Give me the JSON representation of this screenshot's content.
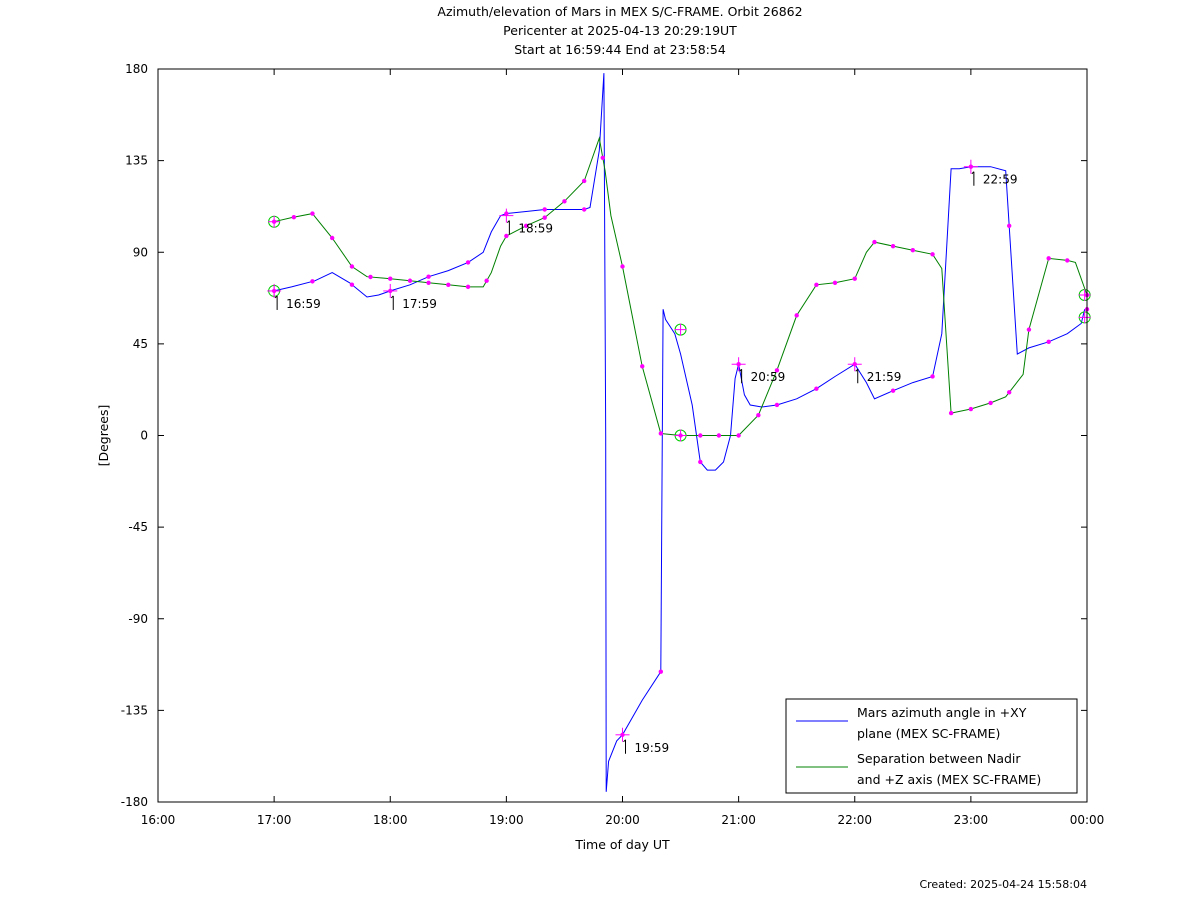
{
  "chart_data": {
    "type": "line",
    "title_lines": [
      "Azimuth/elevation of Mars in MEX S/C-FRAME.  Orbit 26862",
      "Pericenter at 2025-04-13 20:29:19UT",
      "Start at 16:59:44 End at 23:58:54"
    ],
    "xlabel": "Time of day UT",
    "ylabel": "[Degrees]",
    "xlim": [
      16,
      24
    ],
    "ylim": [
      -180,
      180
    ],
    "x_ticks": [
      16,
      17,
      18,
      19,
      20,
      21,
      22,
      23,
      24
    ],
    "x_tick_labels": [
      "16:00",
      "17:00",
      "18:00",
      "19:00",
      "20:00",
      "21:00",
      "22:00",
      "23:00",
      "00:00"
    ],
    "y_ticks": [
      180,
      135,
      90,
      45,
      0,
      -45,
      -90,
      -135,
      -180
    ],
    "y_tick_labels": [
      "180",
      "135",
      "90",
      "45",
      "0",
      "-45",
      "-90",
      "-135",
      "-180"
    ],
    "legend_position": "bottom-right",
    "series": [
      {
        "name": "Mars azimuth angle in +XY plane (MEX SC-FRAME)",
        "legend_lines": [
          "Mars azimuth angle in +XY",
          "plane (MEX SC-FRAME)"
        ],
        "color": "#0000ff",
        "x": [
          17.0,
          17.15,
          17.35,
          17.5,
          17.65,
          17.8,
          17.9,
          18.0,
          18.17,
          18.33,
          18.5,
          18.67,
          18.8,
          18.87,
          18.95,
          19.0,
          19.17,
          19.33,
          19.5,
          19.67,
          19.72,
          19.8,
          19.84,
          19.855,
          19.86,
          19.88,
          19.95,
          20.0,
          20.17,
          20.33,
          20.35,
          20.37,
          20.45,
          20.5,
          20.6,
          20.67,
          20.73,
          20.8,
          20.87,
          20.93,
          20.97,
          21.0,
          21.05,
          21.1,
          21.2,
          21.33,
          21.5,
          21.67,
          21.83,
          22.0,
          22.1,
          22.17,
          22.33,
          22.5,
          22.67,
          22.75,
          22.83,
          22.9,
          23.0,
          23.17,
          23.3,
          23.4,
          23.5,
          23.67,
          23.83,
          23.95,
          23.98
        ],
        "values": [
          71,
          73,
          76,
          80,
          75,
          68,
          69,
          71,
          74,
          78,
          81,
          85,
          90,
          100,
          108,
          109,
          110,
          111,
          111,
          111,
          112,
          140,
          178,
          0,
          -175,
          -160,
          -150,
          -147,
          -130,
          -116,
          62,
          57,
          50,
          40,
          15,
          -13,
          -17,
          -17,
          -13,
          0,
          28,
          35,
          20,
          15,
          14,
          15,
          18,
          23,
          29,
          35,
          26,
          18,
          22,
          26,
          29,
          50,
          131,
          131,
          132,
          132,
          130,
          40,
          43,
          46,
          50,
          55,
          62
        ],
        "markers_x": [
          17.0,
          17.33,
          17.67,
          18.0,
          18.33,
          18.67,
          19.0,
          19.33,
          19.67,
          20.0,
          20.33,
          20.67,
          21.0,
          21.33,
          21.67,
          22.0,
          22.33,
          22.67,
          23.0,
          23.33,
          23.67,
          24.0
        ],
        "time_labels": [
          {
            "x": 17.0,
            "y": 71,
            "text": "16:59"
          },
          {
            "x": 18.0,
            "y": 71,
            "text": "17:59"
          },
          {
            "x": 19.0,
            "y": 108,
            "text": "18:59"
          },
          {
            "x": 20.0,
            "y": -147,
            "text": "19:59"
          },
          {
            "x": 21.0,
            "y": 35,
            "text": "20:59"
          },
          {
            "x": 22.0,
            "y": 35,
            "text": "21:59"
          },
          {
            "x": 23.0,
            "y": 132,
            "text": "22:59"
          }
        ]
      },
      {
        "name": "Separation between Nadir and +Z axis (MEX SC-FRAME)",
        "legend_lines": [
          "Separation between Nadir",
          "and +Z axis (MEX SC-FRAME)"
        ],
        "color": "#008000",
        "x": [
          17.0,
          17.15,
          17.33,
          17.5,
          17.67,
          17.8,
          18.0,
          18.17,
          18.33,
          18.5,
          18.67,
          18.8,
          18.87,
          18.95,
          19.0,
          19.17,
          19.33,
          19.5,
          19.67,
          19.8,
          19.85,
          19.9,
          20.0,
          20.17,
          20.33,
          20.5,
          20.67,
          20.83,
          21.0,
          21.17,
          21.33,
          21.5,
          21.67,
          21.83,
          22.0,
          22.1,
          22.17,
          22.33,
          22.5,
          22.67,
          22.75,
          22.83,
          23.0,
          23.17,
          23.3,
          23.45,
          23.5,
          23.67,
          23.83,
          23.9,
          24.0
        ],
        "values": [
          105,
          107,
          109,
          97,
          83,
          78,
          77,
          76,
          75,
          74,
          73,
          73,
          80,
          93,
          98,
          103,
          107,
          115,
          125,
          146,
          130,
          108,
          83,
          34,
          1,
          0,
          0,
          0,
          0,
          10,
          32,
          59,
          74,
          75,
          77,
          90,
          95,
          93,
          91,
          89,
          82,
          11,
          13,
          16,
          19,
          30,
          52,
          87,
          86,
          85,
          69
        ],
        "markers_x": [
          17.0,
          17.17,
          17.33,
          17.5,
          17.67,
          17.83,
          18.0,
          18.17,
          18.33,
          18.5,
          18.67,
          18.83,
          19.0,
          19.17,
          19.33,
          19.5,
          19.67,
          19.83,
          20.0,
          20.17,
          20.33,
          20.5,
          20.67,
          20.83,
          21.0,
          21.17,
          21.33,
          21.5,
          21.67,
          21.83,
          22.0,
          22.17,
          22.33,
          22.5,
          22.67,
          22.83,
          23.0,
          23.17,
          23.33,
          23.5,
          23.67,
          23.83,
          24.0
        ]
      }
    ],
    "circle_markers": [
      {
        "x": 17.0,
        "y": 105
      },
      {
        "x": 17.0,
        "y": 71
      },
      {
        "x": 20.5,
        "y": 52
      },
      {
        "x": 20.5,
        "y": 0
      },
      {
        "x": 23.98,
        "y": 69
      },
      {
        "x": 23.98,
        "y": 58
      }
    ]
  },
  "footer": {
    "created": "Created: 2025-04-24 15:58:04"
  }
}
